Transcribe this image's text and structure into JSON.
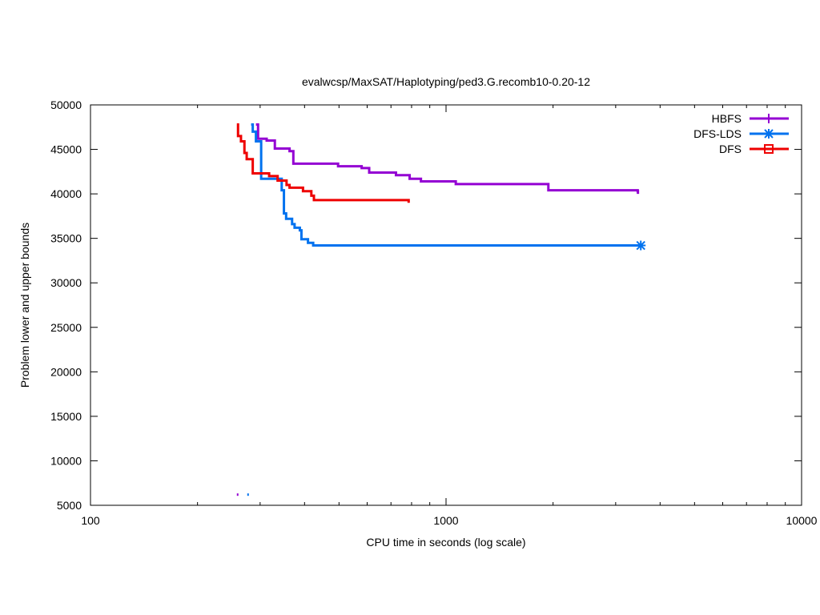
{
  "chart_data": {
    "type": "line",
    "title": "evalwcsp/MaxSAT/Haplotyping/ped3.G.recomb10-0.20-12",
    "xlabel": "CPU time in seconds (log scale)",
    "ylabel": "Problem lower and upper bounds",
    "xscale": "log",
    "xlim": [
      100,
      10000
    ],
    "ylim": [
      5000,
      50000
    ],
    "xticks": [
      100,
      1000,
      10000
    ],
    "xtick_labels": [
      "100",
      "1000",
      "10000"
    ],
    "yticks": [
      5000,
      10000,
      15000,
      20000,
      25000,
      30000,
      35000,
      40000,
      45000,
      50000
    ],
    "ytick_labels": [
      "5000",
      "10000",
      "15000",
      "20000",
      "25000",
      "30000",
      "35000",
      "40000",
      "45000",
      "50000"
    ],
    "grid": false,
    "legend_position": "top-right",
    "series": [
      {
        "name": "HBFS",
        "color": "#9400d3",
        "marker": "plus",
        "step": true,
        "points": [
          [
            292,
            47800
          ],
          [
            296,
            46200
          ],
          [
            313,
            46000
          ],
          [
            330,
            45100
          ],
          [
            363,
            44800
          ],
          [
            372,
            43400
          ],
          [
            497,
            43100
          ],
          [
            579,
            42900
          ],
          [
            608,
            42400
          ],
          [
            723,
            42100
          ],
          [
            790,
            41700
          ],
          [
            850,
            41400
          ],
          [
            1065,
            41100
          ],
          [
            1940,
            40400
          ],
          [
            3460,
            40300
          ],
          [
            3465,
            40000
          ]
        ],
        "lower_bound": [
          [
            258,
            6200
          ],
          [
            263,
            6200
          ]
        ]
      },
      {
        "name": "DFS-LDS",
        "color": "#0072ef",
        "marker": "star",
        "step": true,
        "points": [
          [
            283,
            47800
          ],
          [
            286,
            47000
          ],
          [
            292,
            45900
          ],
          [
            302,
            41700
          ],
          [
            345,
            40400
          ],
          [
            350,
            37800
          ],
          [
            355,
            37200
          ],
          [
            369,
            36600
          ],
          [
            375,
            36200
          ],
          [
            388,
            35900
          ],
          [
            392,
            34900
          ],
          [
            409,
            34500
          ],
          [
            423,
            34200
          ],
          [
            3530,
            34200
          ]
        ],
        "lower_bound": [
          [
            276,
            6200
          ],
          [
            281,
            6200
          ]
        ]
      },
      {
        "name": "DFS",
        "color": "#ee0000",
        "marker": "square",
        "step": true,
        "points": [
          [
            258,
            47800
          ],
          [
            260,
            46500
          ],
          [
            265,
            45900
          ],
          [
            271,
            44600
          ],
          [
            275,
            43900
          ],
          [
            286,
            42300
          ],
          [
            318,
            42000
          ],
          [
            336,
            41500
          ],
          [
            356,
            41000
          ],
          [
            363,
            40700
          ],
          [
            396,
            40300
          ],
          [
            418,
            39800
          ],
          [
            425,
            39300
          ],
          [
            780,
            39300
          ],
          [
            785,
            39000
          ]
        ],
        "lower_bound": []
      }
    ]
  }
}
